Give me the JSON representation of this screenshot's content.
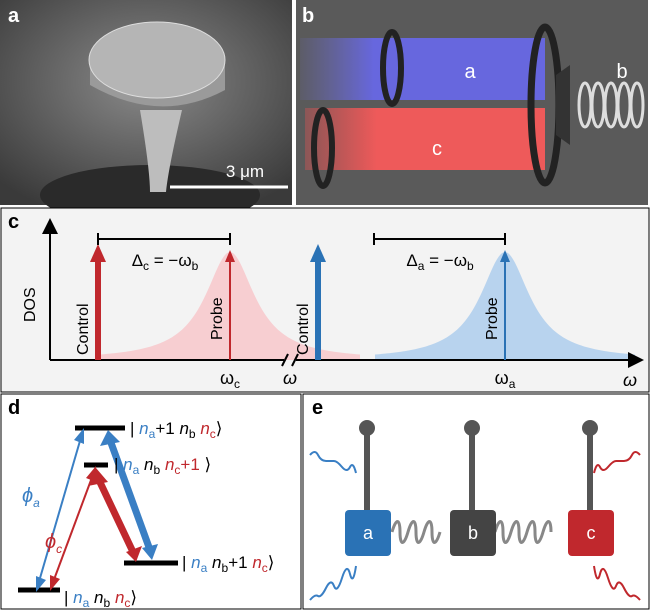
{
  "panels": {
    "a": {
      "label": "a",
      "scale_bar": "3 μm"
    },
    "b": {
      "label": "b",
      "mode_a": "a",
      "mode_b": "b",
      "mode_c": "c"
    },
    "c": {
      "label": "c",
      "y_axis": "DOS",
      "x_axis": "ω",
      "break_label": "ω",
      "detuning_c": {
        "symbol": "Δ",
        "sub": "c",
        "eq": " = −ω",
        "eq_sub": "b"
      },
      "detuning_a": {
        "symbol": "Δ",
        "sub": "a",
        "eq": " = −ω",
        "eq_sub": "b"
      },
      "control_c": "Control",
      "probe_c": "Probe",
      "control_a": "Control",
      "probe_a": "Probe",
      "freq_c": {
        "symbol": "ω",
        "sub": "c"
      },
      "freq_a": {
        "symbol": "ω",
        "sub": "a"
      }
    },
    "d": {
      "label": "d",
      "phi_a": {
        "symbol": "ϕ",
        "sub": "a"
      },
      "phi_c": {
        "symbol": "ϕ",
        "sub": "c"
      },
      "states": [
        {
          "open": "|",
          "n1": "n",
          "s1": "a",
          "a1": "+1",
          "n2": "n",
          "s2": "b",
          "n3": "n",
          "s3": "c",
          "close": "⟩"
        },
        {
          "open": "|",
          "n1": "n",
          "s1": "a",
          "n2": "n",
          "s2": "b",
          "n3": "n",
          "s3": "c",
          "a3": "+1",
          "close": "⟩"
        },
        {
          "open": "|",
          "n1": "n",
          "s1": "a",
          "n2": "n",
          "s2": "b",
          "a2": "+1",
          "n3": "n",
          "s3": "c",
          "close": "⟩"
        },
        {
          "open": "|",
          "n1": "n",
          "s1": "a",
          "n2": "n",
          "s2": "b",
          "n3": "n",
          "s3": "c",
          "close": "⟩"
        }
      ]
    },
    "e": {
      "label": "e",
      "node_a": "a",
      "node_b": "b",
      "node_c": "c"
    }
  }
}
